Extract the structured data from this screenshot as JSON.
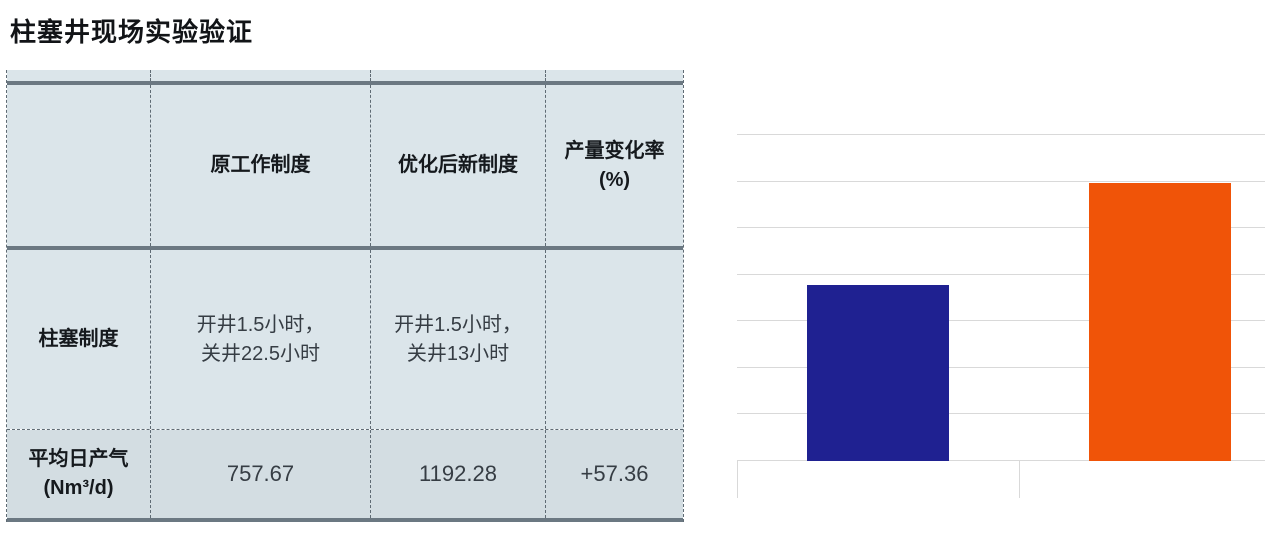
{
  "page": {
    "title": "柱塞井现场实验验证"
  },
  "table": {
    "columns": [
      "",
      "原工作制度",
      "优化后新制度",
      "产量变化率\n(%)"
    ],
    "rows": [
      {
        "header": "柱塞制度",
        "cells": [
          "开井1.5小时，\n关井22.5小时",
          "开井1.5小时，\n关井13小时",
          ""
        ]
      },
      {
        "header": "平均日产气\n(Nm³/d)",
        "cells": [
          "757.67",
          "1192.28",
          "+57.36"
        ]
      }
    ]
  },
  "chart_data": {
    "type": "bar",
    "title": "",
    "xlabel": "",
    "ylabel": "",
    "categories": [
      "",
      ""
    ],
    "values": [
      757.67,
      1192.28
    ],
    "bar_colors": [
      "#1f2191",
      "#f05408"
    ],
    "ylim": [
      0,
      1400
    ],
    "gridline_step": 200,
    "grid": true,
    "legend": false,
    "tick_labels_visible": false
  },
  "colors": {
    "table_bg": "#dbe5ea",
    "table_bg_last_row": "#d3dde2",
    "thick_rule": "#6b7882",
    "dashed_rule": "#5f6b74",
    "gridline": "#d9d9d9",
    "bar_blue": "#1f2191",
    "bar_orange": "#f05408",
    "title_text": "#121417"
  }
}
